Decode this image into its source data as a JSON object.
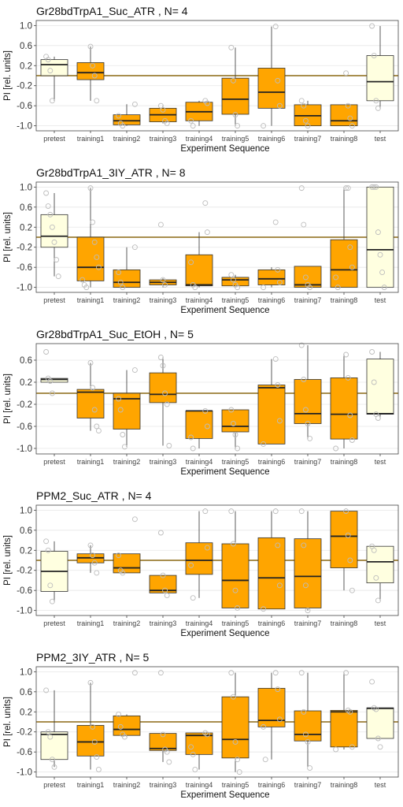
{
  "colors": {
    "training_box": "#FFA500",
    "control_box": "#FFFFE0",
    "box_border": "#333333",
    "median": "#222222",
    "reference_line": "#8B6914",
    "points": "#cccccc"
  },
  "chart_data": [
    {
      "type": "box",
      "title": "Gr28bdTrpA1_Suc_ATR , N= 4",
      "xlabel": "Experiment Sequence",
      "ylabel": "PI [rel. units]",
      "ylim": [
        -1.1,
        1.1
      ],
      "yticks": [
        1.0,
        0.6,
        0.2,
        -0.2,
        -0.6,
        -1.0
      ],
      "yticklabels": [
        "1.0",
        "0.6",
        "0.2",
        "-0.2",
        "-0.6",
        "-1.0"
      ],
      "reference_line": 0,
      "categories": [
        "pretest",
        "training1",
        "training2",
        "training3",
        "training4",
        "training5",
        "training6",
        "training7",
        "training8",
        "test"
      ],
      "boxes": [
        {
          "q1": 0.0,
          "median": 0.22,
          "q3": 0.32,
          "min": -0.5,
          "max": 0.38,
          "fill": "control",
          "points": [
            0.38,
            0.32,
            0.1,
            -0.5
          ]
        },
        {
          "q1": -0.08,
          "median": 0.06,
          "q3": 0.26,
          "min": -0.5,
          "max": 0.58,
          "fill": "training",
          "points": [
            0.58,
            0.2,
            0.0,
            -0.5
          ]
        },
        {
          "q1": -0.98,
          "median": -0.9,
          "q3": -0.78,
          "min": -1.0,
          "max": -0.57,
          "fill": "training",
          "points": [
            -0.57,
            -0.8,
            -0.95,
            -1.0
          ]
        },
        {
          "q1": -0.92,
          "median": -0.78,
          "q3": -0.65,
          "min": -0.95,
          "max": -0.6,
          "fill": "training",
          "points": [
            -0.6,
            -0.68,
            -0.9,
            -0.95
          ]
        },
        {
          "q1": -0.9,
          "median": -0.72,
          "q3": -0.53,
          "min": -1.0,
          "max": -0.5,
          "fill": "training",
          "points": [
            -0.5,
            -0.55,
            -0.9,
            -1.0
          ]
        },
        {
          "q1": -0.77,
          "median": -0.47,
          "q3": -0.05,
          "min": -1.0,
          "max": 0.56,
          "fill": "training",
          "points": [
            0.56,
            -0.1,
            -0.78,
            -1.0
          ]
        },
        {
          "q1": -0.65,
          "median": -0.33,
          "q3": 0.15,
          "min": -1.0,
          "max": 0.98,
          "fill": "training",
          "points": [
            0.98,
            -0.1,
            -0.6,
            -1.0
          ]
        },
        {
          "q1": -1.0,
          "median": -0.8,
          "q3": -0.58,
          "min": -1.0,
          "max": -0.5,
          "fill": "training",
          "points": [
            -0.5,
            -0.6,
            -0.9,
            -1.0
          ]
        },
        {
          "q1": -1.0,
          "median": -0.9,
          "q3": -0.58,
          "min": -1.0,
          "max": -0.58,
          "fill": "training",
          "points": [
            0.05,
            -0.6,
            -0.85,
            -1.0
          ]
        },
        {
          "q1": -0.5,
          "median": -0.12,
          "q3": 0.4,
          "min": -0.65,
          "max": 0.99,
          "fill": "control",
          "points": [
            0.99,
            0.4,
            -0.5,
            -0.65
          ]
        }
      ]
    },
    {
      "type": "box",
      "title": "Gr28bdTrpA1_3IY_ATR , N= 8",
      "xlabel": "Experiment Sequence",
      "ylabel": "PI [rel. units]",
      "ylim": [
        -1.1,
        1.1
      ],
      "yticks": [
        1.0,
        0.6,
        0.2,
        -0.2,
        -0.6,
        -1.0
      ],
      "yticklabels": [
        "1.0",
        "0.6",
        "0.2",
        "-0.2",
        "-0.6",
        "-1.0"
      ],
      "reference_line": 0,
      "categories": [
        "pretest",
        "training1",
        "training2",
        "training3",
        "training4",
        "training5",
        "training6",
        "training7",
        "training8",
        "test"
      ],
      "boxes": [
        {
          "q1": -0.2,
          "median": 0.02,
          "q3": 0.45,
          "min": -0.78,
          "max": 0.88,
          "fill": "control",
          "points": [
            0.88,
            0.62,
            0.45,
            0.2,
            -0.1,
            -0.45,
            -0.78
          ]
        },
        {
          "q1": -0.87,
          "median": -0.6,
          "q3": 0.0,
          "min": -1.0,
          "max": 0.98,
          "fill": "training",
          "points": [
            0.98,
            0.3,
            -0.1,
            -0.4,
            -0.6,
            -0.85,
            -0.95,
            -1.0
          ]
        },
        {
          "q1": -1.0,
          "median": -0.9,
          "q3": -0.65,
          "min": -1.0,
          "max": -0.2,
          "fill": "training",
          "points": [
            -0.2,
            -0.7,
            -0.9,
            -1.0
          ]
        },
        {
          "q1": -0.95,
          "median": -0.9,
          "q3": -0.85,
          "min": -1.0,
          "max": -0.82,
          "fill": "training",
          "points": [
            0.25,
            -0.85,
            -0.95
          ]
        },
        {
          "q1": -0.97,
          "median": -0.95,
          "q3": -0.35,
          "min": -1.0,
          "max": 0.1,
          "fill": "training",
          "points": [
            0.68,
            0.1,
            -0.5,
            -0.95,
            -1.0
          ]
        },
        {
          "q1": -0.97,
          "median": -0.85,
          "q3": -0.8,
          "min": -1.0,
          "max": -0.75,
          "fill": "training",
          "points": [
            -0.75,
            -0.85,
            -0.95,
            -1.0
          ]
        },
        {
          "q1": -0.95,
          "median": -0.83,
          "q3": -0.65,
          "min": -1.0,
          "max": -0.6,
          "fill": "training",
          "points": [
            0.3,
            -0.65,
            -0.9,
            -1.0
          ]
        },
        {
          "q1": -1.0,
          "median": -0.95,
          "q3": -0.58,
          "min": -1.0,
          "max": -0.58,
          "fill": "training",
          "points": [
            0.98,
            0.25,
            -0.8,
            -0.95,
            -1.0
          ]
        },
        {
          "q1": -1.0,
          "median": -0.65,
          "q3": -0.05,
          "min": -1.0,
          "max": 0.98,
          "fill": "training",
          "points": [
            0.98,
            0.98,
            -0.2,
            -0.6,
            -0.8,
            -1.0
          ]
        },
        {
          "q1": -1.0,
          "median": -0.25,
          "q3": 1.0,
          "min": -1.0,
          "max": 1.0,
          "fill": "control",
          "points": [
            1.0,
            1.0,
            1.0,
            0.1,
            -0.35,
            -0.7,
            -1.0
          ]
        }
      ]
    },
    {
      "type": "box",
      "title": "Gr28bdTrpA1_Suc_EtOH , N= 5",
      "xlabel": "Experiment Sequence",
      "ylabel": "PI [rel. units]",
      "ylim": [
        -1.1,
        0.9
      ],
      "yticks": [
        0.6,
        0.2,
        -0.2,
        -0.6,
        -1.0
      ],
      "yticklabels": [
        "0.6",
        "0.2",
        "-0.2",
        "-0.6",
        "-1.0"
      ],
      "reference_line": 0,
      "categories": [
        "pretest",
        "training1",
        "training2",
        "training3",
        "training4",
        "training5",
        "training6",
        "training7",
        "training8",
        "test"
      ],
      "boxes": [
        {
          "q1": 0.2,
          "median": 0.25,
          "q3": 0.27,
          "min": 0.2,
          "max": 0.27,
          "fill": "control",
          "points": [
            0.75,
            0.27,
            0.22,
            0.0
          ]
        },
        {
          "q1": -0.45,
          "median": 0.02,
          "q3": 0.07,
          "min": -0.68,
          "max": 0.55,
          "fill": "training",
          "points": [
            0.55,
            0.1,
            -0.3,
            -0.6,
            -0.68
          ]
        },
        {
          "q1": -0.65,
          "median": -0.1,
          "q3": 0.0,
          "min": -0.97,
          "max": 0.42,
          "fill": "training",
          "points": [
            0.42,
            -0.1,
            -0.3,
            -0.75,
            -0.97
          ]
        },
        {
          "q1": -0.17,
          "median": -0.02,
          "q3": 0.37,
          "min": -0.95,
          "max": 0.65,
          "fill": "training",
          "points": [
            0.65,
            0.5,
            0.0,
            -0.2,
            -0.95
          ]
        },
        {
          "q1": -0.82,
          "median": -0.32,
          "q3": -0.32,
          "min": -1.0,
          "max": -0.32,
          "fill": "training",
          "points": [
            -0.32,
            -0.6,
            -0.8,
            -1.0
          ]
        },
        {
          "q1": -0.7,
          "median": -0.6,
          "q3": -0.3,
          "min": -1.0,
          "max": -0.3,
          "fill": "training",
          "points": [
            -0.3,
            -0.55,
            -0.75,
            -1.0
          ]
        },
        {
          "q1": -0.92,
          "median": 0.1,
          "q3": 0.15,
          "min": -0.92,
          "max": 0.62,
          "fill": "training",
          "points": [
            0.62,
            0.15,
            -0.5,
            -0.92
          ]
        },
        {
          "q1": -0.55,
          "median": -0.37,
          "q3": 0.25,
          "min": -0.82,
          "max": 0.87,
          "fill": "training",
          "points": [
            0.87,
            0.25,
            -0.3,
            -0.55,
            -0.82
          ]
        },
        {
          "q1": -0.83,
          "median": -0.38,
          "q3": 0.28,
          "min": -1.0,
          "max": 0.7,
          "fill": "training",
          "points": [
            0.7,
            0.28,
            -0.4,
            -0.85,
            -1.0
          ]
        },
        {
          "q1": -0.38,
          "median": -0.37,
          "q3": 0.62,
          "min": -0.45,
          "max": 0.75,
          "fill": "control",
          "points": [
            0.75,
            0.2,
            -0.38,
            -0.45
          ]
        }
      ]
    },
    {
      "type": "box",
      "title": "PPM2_Suc_ATR , N= 4",
      "xlabel": "Experiment Sequence",
      "ylabel": "PI [rel. units]",
      "ylim": [
        -1.1,
        1.1
      ],
      "yticks": [
        1.0,
        0.6,
        0.2,
        -0.2,
        -0.6,
        -1.0
      ],
      "yticklabels": [
        "1.0",
        "0.6",
        "0.2",
        "-0.2",
        "-0.6",
        "-1.0"
      ],
      "reference_line": 0,
      "categories": [
        "pretest",
        "training1",
        "training2",
        "training3",
        "training4",
        "training5",
        "training6",
        "training7",
        "training8",
        "test"
      ],
      "boxes": [
        {
          "q1": -0.62,
          "median": -0.22,
          "q3": 0.18,
          "min": -0.82,
          "max": 0.38,
          "fill": "control",
          "points": [
            0.38,
            0.2,
            -0.5,
            -0.82
          ]
        },
        {
          "q1": -0.05,
          "median": 0.05,
          "q3": 0.13,
          "min": -0.25,
          "max": 0.3,
          "fill": "training",
          "points": [
            0.3,
            0.1,
            -0.05,
            -0.25
          ]
        },
        {
          "q1": -0.25,
          "median": -0.15,
          "q3": 0.13,
          "min": -0.25,
          "max": 0.13,
          "fill": "training",
          "points": [
            0.82,
            0.1,
            -0.2,
            -0.25
          ]
        },
        {
          "q1": -0.65,
          "median": -0.6,
          "q3": -0.3,
          "min": -0.65,
          "max": -0.3,
          "fill": "training",
          "points": [
            0.55,
            -0.3,
            -0.6,
            -0.7
          ]
        },
        {
          "q1": -0.28,
          "median": 0.0,
          "q3": 0.35,
          "min": -0.75,
          "max": 0.98,
          "fill": "training",
          "points": [
            0.98,
            0.25,
            -0.1,
            -0.75
          ]
        },
        {
          "q1": -0.95,
          "median": -0.4,
          "q3": 0.33,
          "min": -0.95,
          "max": 0.98,
          "fill": "training",
          "points": [
            0.98,
            0.33,
            -0.6,
            -0.95
          ]
        },
        {
          "q1": -0.97,
          "median": -0.35,
          "q3": 0.45,
          "min": -0.97,
          "max": 0.98,
          "fill": "training",
          "points": [
            0.98,
            0.3,
            -0.5,
            -0.97
          ]
        },
        {
          "q1": -0.95,
          "median": -0.32,
          "q3": 0.43,
          "min": -1.0,
          "max": 0.98,
          "fill": "training",
          "points": [
            0.98,
            0.3,
            -0.5,
            -1.0
          ]
        },
        {
          "q1": -0.15,
          "median": 0.48,
          "q3": 0.98,
          "min": -0.6,
          "max": 0.98,
          "fill": "training",
          "points": [
            0.98,
            0.5,
            0.0,
            -0.6
          ]
        },
        {
          "q1": -0.45,
          "median": -0.03,
          "q3": 0.28,
          "min": -0.8,
          "max": 0.28,
          "fill": "control",
          "points": [
            0.28,
            0.2,
            -0.35,
            -0.8
          ]
        }
      ]
    },
    {
      "type": "box",
      "title": "PPM2_3IY_ATR , N= 5",
      "xlabel": "Experiment Sequence",
      "ylabel": "PI [rel. units]",
      "ylim": [
        -1.1,
        1.1
      ],
      "yticks": [
        1.0,
        0.6,
        0.2,
        -0.2,
        -0.6,
        -1.0
      ],
      "yticklabels": [
        "1.0",
        "0.6",
        "0.2",
        "-0.2",
        "-0.6",
        "-1.0"
      ],
      "reference_line": 0,
      "categories": [
        "pretest",
        "training1",
        "training2",
        "training3",
        "training4",
        "training5",
        "training6",
        "training7",
        "training8",
        "test"
      ],
      "boxes": [
        {
          "q1": -0.75,
          "median": -0.25,
          "q3": -0.2,
          "min": -0.9,
          "max": 0.63,
          "fill": "control",
          "points": [
            0.63,
            -0.2,
            -0.3,
            -0.75,
            -0.9
          ]
        },
        {
          "q1": -0.68,
          "median": -0.4,
          "q3": -0.07,
          "min": -0.95,
          "max": 0.78,
          "fill": "training",
          "points": [
            0.78,
            -0.1,
            -0.4,
            -0.7,
            -0.95
          ]
        },
        {
          "q1": -0.27,
          "median": -0.15,
          "q3": 0.12,
          "min": -0.3,
          "max": 0.15,
          "fill": "training",
          "points": [
            0.98,
            0.15,
            -0.1,
            -0.25,
            -0.3
          ]
        },
        {
          "q1": -0.57,
          "median": -0.53,
          "q3": -0.23,
          "min": -0.8,
          "max": -0.23,
          "fill": "training",
          "points": [
            0.98,
            -0.25,
            -0.55,
            -0.6,
            -0.8
          ]
        },
        {
          "q1": -0.65,
          "median": -0.27,
          "q3": -0.22,
          "min": -0.95,
          "max": -0.22,
          "fill": "training",
          "points": [
            -0.22,
            -0.25,
            -0.5,
            -0.65,
            -0.95
          ]
        },
        {
          "q1": -0.72,
          "median": -0.35,
          "q3": 0.5,
          "min": -1.0,
          "max": 0.98,
          "fill": "training",
          "points": [
            0.98,
            0.5,
            -0.4,
            -0.75,
            -1.0
          ]
        },
        {
          "q1": -0.1,
          "median": 0.03,
          "q3": 0.67,
          "min": -0.75,
          "max": 0.98,
          "fill": "training",
          "points": [
            0.98,
            0.65,
            0.05,
            -0.1,
            -0.75
          ]
        },
        {
          "q1": -0.38,
          "median": -0.25,
          "q3": 0.22,
          "min": -0.9,
          "max": 0.98,
          "fill": "training",
          "points": [
            0.98,
            0.2,
            -0.25,
            -0.4,
            -0.92
          ]
        },
        {
          "q1": -0.5,
          "median": 0.2,
          "q3": 0.23,
          "min": -0.55,
          "max": 0.98,
          "fill": "training",
          "points": [
            0.98,
            0.23,
            0.2,
            -0.5,
            -0.55
          ]
        },
        {
          "q1": -0.33,
          "median": 0.27,
          "q3": 0.28,
          "min": -0.33,
          "max": 0.28,
          "fill": "control",
          "points": [
            0.8,
            0.28,
            0.25,
            -0.33,
            -0.5
          ]
        }
      ]
    }
  ]
}
